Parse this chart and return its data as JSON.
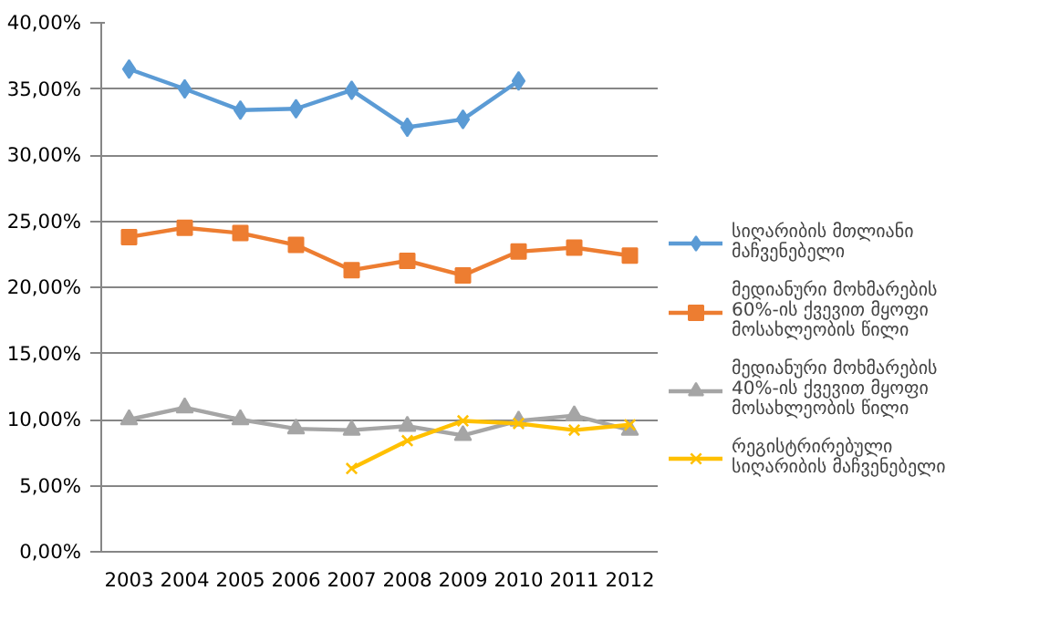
{
  "chart_data": {
    "type": "line",
    "categories": [
      "2003",
      "2004",
      "2005",
      "2006",
      "2007",
      "2008",
      "2009",
      "2010",
      "2011",
      "2012"
    ],
    "series": [
      {
        "name": "სიღარიბის მთლიანი მაჩვენებელი",
        "color": "#5b9bd5",
        "marker": "diamond",
        "values": [
          36.5,
          35.0,
          33.4,
          33.5,
          34.9,
          32.1,
          32.7,
          35.6,
          null,
          null
        ]
      },
      {
        "name": "მედიანური მოხმარების 60%-ის ქვევით მყოფი მოსახლეობის წილი",
        "color": "#ed7d31",
        "marker": "square",
        "values": [
          23.8,
          24.5,
          24.1,
          23.2,
          21.3,
          22.0,
          20.9,
          22.7,
          23.0,
          22.4
        ]
      },
      {
        "name": "მედიანური მოხმარების 40%-ის ქვევით მყოფი მოსახლეობის წილი",
        "color": "#a5a5a5",
        "marker": "triangle",
        "values": [
          10.0,
          10.9,
          10.0,
          9.3,
          9.2,
          9.5,
          8.8,
          9.9,
          10.3,
          9.2
        ]
      },
      {
        "name": "რეგისტრირებული სიღარიბის მაჩვენებელი",
        "color": "#ffc000",
        "marker": "cross",
        "values": [
          null,
          null,
          null,
          null,
          6.3,
          8.4,
          9.9,
          9.7,
          9.2,
          9.6
        ]
      }
    ],
    "ylim": [
      0,
      40
    ],
    "yticks": [
      {
        "value": 0,
        "label": "0,00%"
      },
      {
        "value": 5,
        "label": "5,00%"
      },
      {
        "value": 10,
        "label": "10,00%"
      },
      {
        "value": 15,
        "label": "15,00%"
      },
      {
        "value": 20,
        "label": "20,00%"
      },
      {
        "value": 25,
        "label": "25,00%"
      },
      {
        "value": 30,
        "label": "30,00%"
      },
      {
        "value": 35,
        "label": "35,00%"
      },
      {
        "value": 40,
        "label": "40,00%"
      }
    ],
    "grid": "y",
    "legend": "right",
    "line_style": "solid"
  }
}
